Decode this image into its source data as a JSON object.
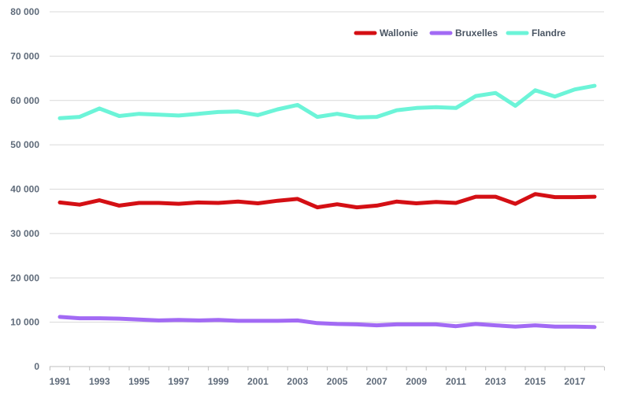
{
  "chart_data": {
    "type": "line",
    "title": "",
    "xlabel": "",
    "ylabel": "",
    "ylim": [
      0,
      80000
    ],
    "y_ticks": [
      0,
      10000,
      20000,
      30000,
      40000,
      50000,
      60000,
      70000,
      80000
    ],
    "y_tick_labels": [
      "0",
      "10 000",
      "20 000",
      "30 000",
      "40 000",
      "50 000",
      "60 000",
      "70 000",
      "80 000"
    ],
    "x": [
      1991,
      1992,
      1993,
      1994,
      1995,
      1996,
      1997,
      1998,
      1999,
      2000,
      2001,
      2002,
      2003,
      2004,
      2005,
      2006,
      2007,
      2008,
      2009,
      2010,
      2011,
      2012,
      2013,
      2014,
      2015,
      2016,
      2017,
      2018
    ],
    "x_tick_labels": [
      "1991",
      "1993",
      "1995",
      "1997",
      "1999",
      "2001",
      "2003",
      "2005",
      "2007",
      "2009",
      "2011",
      "2013",
      "2015",
      "2017"
    ],
    "grid": "horizontal",
    "legend_position": "top-right",
    "series": [
      {
        "name": "Wallonie",
        "color": "#d40f14",
        "values": [
          37000,
          36500,
          37500,
          36300,
          36900,
          36900,
          36700,
          37000,
          36900,
          37200,
          36800,
          37400,
          37800,
          35900,
          36600,
          35900,
          36300,
          37200,
          36800,
          37100,
          36900,
          38300,
          38300,
          36700,
          38900,
          38200,
          38200,
          38300
        ]
      },
      {
        "name": "Bruxelles",
        "color": "#a26af4",
        "values": [
          11200,
          10900,
          10900,
          10800,
          10600,
          10400,
          10500,
          10400,
          10500,
          10300,
          10300,
          10300,
          10400,
          9800,
          9600,
          9500,
          9300,
          9500,
          9500,
          9500,
          9100,
          9600,
          9300,
          9000,
          9300,
          9000,
          9000,
          8900
        ]
      },
      {
        "name": "Flandre",
        "color": "#6cf4d8",
        "values": [
          56000,
          56300,
          58200,
          56500,
          57000,
          56800,
          56600,
          57000,
          57400,
          57500,
          56700,
          58000,
          59000,
          56300,
          57000,
          56200,
          56300,
          57800,
          58300,
          58500,
          58300,
          61000,
          61700,
          58800,
          62300,
          60900,
          62500,
          63300
        ]
      }
    ]
  }
}
